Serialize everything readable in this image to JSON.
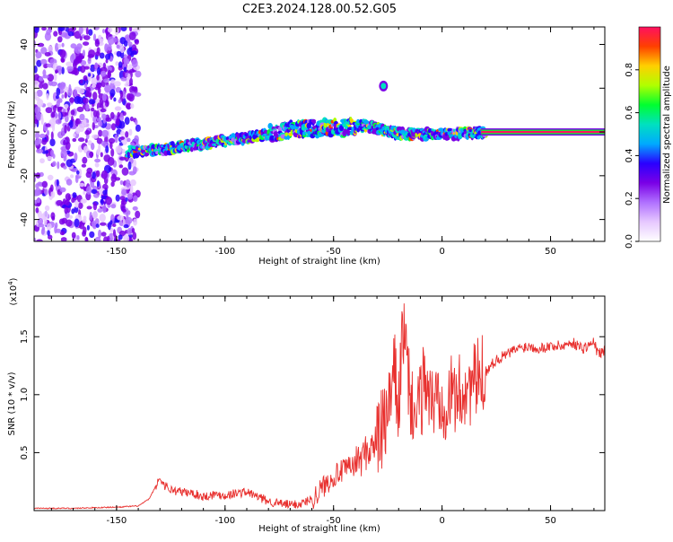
{
  "title": "C2E3.2024.128.00.52.G05",
  "colors": {
    "snr_line": "#e8302e",
    "axis": "#000000",
    "colorbar_stops": [
      "#ffffff",
      "#e6c8ff",
      "#b070ff",
      "#7a00e6",
      "#2a00ff",
      "#00aaff",
      "#00e0c0",
      "#00ff30",
      "#b0ff00",
      "#ffd000",
      "#ff4000",
      "#ff1060"
    ]
  },
  "chart_data": [
    {
      "type": "heatmap",
      "xlabel": "Height of straight line (km)",
      "ylabel": "Frequency (Hz)",
      "xlim": [
        -188,
        75
      ],
      "ylim": [
        -50,
        48
      ],
      "xticks": [
        -150,
        -100,
        -50,
        0,
        50
      ],
      "yticks": [
        -40,
        -20,
        0,
        20,
        40
      ],
      "ridge": {
        "description_points_x": [
          -145,
          -130,
          -115,
          -100,
          -85,
          -70,
          -55,
          -45,
          -35,
          -25,
          -15,
          -5,
          5,
          20,
          75
        ],
        "description_points_y": [
          -9,
          -8,
          -6,
          -4,
          -2,
          1,
          2,
          2,
          3,
          0,
          -1,
          -1,
          -1,
          0,
          0
        ]
      },
      "colorbar": {
        "label": "Normalized spectral amplitude",
        "range": [
          0.0,
          1.0
        ],
        "ticks": [
          0.0,
          0.2,
          0.4,
          0.6,
          0.8
        ]
      },
      "grid": false
    },
    {
      "type": "line",
      "xlabel": "Height of straight line (km)",
      "ylabel": "SNR (10 * v/v)",
      "yscale_label": "(x10",
      "yscale_exp": "4",
      "yscale_close": ")",
      "xlim": [
        -188,
        75
      ],
      "ylim": [
        0,
        1.85
      ],
      "xticks": [
        -150,
        -100,
        -50,
        0,
        50
      ],
      "yticks": [
        0.5,
        1.0,
        1.5
      ],
      "series": [
        {
          "x": [
            -188,
            -170,
            -150,
            -140,
            -135,
            -130,
            -128,
            -125,
            -120,
            -115,
            -110,
            -105,
            -100,
            -95,
            -90,
            -85,
            -80,
            -75,
            -70,
            -65,
            -60,
            -55,
            -50,
            -45,
            -40,
            -35,
            -30,
            -25,
            -22,
            -20,
            -18,
            -15,
            -12,
            -10,
            -8,
            -5,
            -2,
            0,
            2,
            5,
            8,
            10,
            15,
            20,
            25,
            30,
            35,
            40,
            45,
            50,
            55,
            60,
            65,
            70,
            72,
            75
          ],
          "y": [
            0.02,
            0.02,
            0.03,
            0.04,
            0.1,
            0.28,
            0.22,
            0.18,
            0.16,
            0.15,
            0.12,
            0.14,
            0.13,
            0.15,
            0.16,
            0.12,
            0.08,
            0.06,
            0.05,
            0.06,
            0.1,
            0.2,
            0.3,
            0.35,
            0.4,
            0.5,
            0.6,
            0.8,
            1.2,
            0.9,
            1.6,
            1.0,
            0.8,
            0.9,
            1.2,
            0.9,
            1.0,
            1.0,
            0.95,
            1.0,
            1.0,
            1.05,
            1.1,
            1.2,
            1.3,
            1.35,
            1.4,
            1.42,
            1.4,
            1.42,
            1.42,
            1.45,
            1.4,
            1.45,
            1.35,
            1.38
          ]
        }
      ],
      "grid": false
    }
  ]
}
